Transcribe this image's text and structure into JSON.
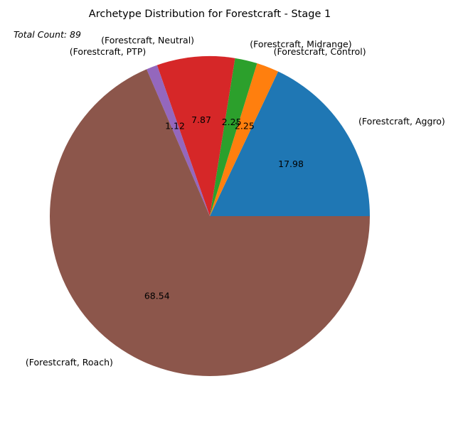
{
  "chart_data": {
    "type": "pie",
    "title": "Archetype Distribution for Forestcraft - Stage 1",
    "annotation": "Total Count: 89",
    "slices": [
      {
        "label": "(Forestcraft, Aggro)",
        "value": 17.98,
        "pct_label": "17.98",
        "color": "#1f77b4"
      },
      {
        "label": "(Forestcraft, Control)",
        "value": 2.25,
        "pct_label": "2.25",
        "color": "#ff7f0e"
      },
      {
        "label": "(Forestcraft, Midrange)",
        "value": 2.25,
        "pct_label": "2.25",
        "color": "#2ca02c"
      },
      {
        "label": "(Forestcraft, Neutral)",
        "value": 7.87,
        "pct_label": "7.87",
        "color": "#d62728"
      },
      {
        "label": "(Forestcraft, PTP)",
        "value": 1.12,
        "pct_label": "1.12",
        "color": "#9467bd"
      },
      {
        "label": "(Forestcraft, Roach)",
        "value": 68.54,
        "pct_label": "68.54",
        "color": "#8c564b"
      }
    ],
    "start_angle_deg": 0,
    "direction": "counterclockwise"
  }
}
